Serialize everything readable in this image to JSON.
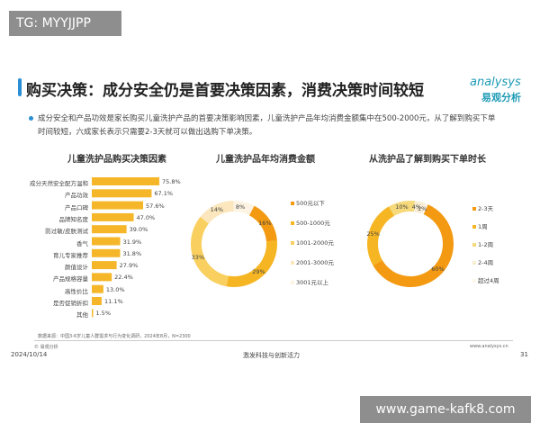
{
  "slide": {
    "title": "购买决策：成分安全仍是首要决策因素，消费决策时间较短",
    "logo_en": "analysys",
    "logo_cn": "易观分析",
    "bullet_line1": "成分安全和产品功效是家长购买儿童洗护产品的首要决策影响因素，儿童洗护产品年均消费金额集中在500-2000元，从了解到购买下单",
    "bullet_line2": "时间较短，六成家长表示只需要2-3天就可以做出选购下单决策。",
    "source": "数据来源：中国3-6岁儿童人群需求与行为变化调研，2024年8月，N=2300",
    "copyright": "© 易观分析",
    "website": "www.analysys.cn",
    "date": "2024/10/14",
    "footer_center": "激发科技与创新活力",
    "page_number": "31"
  },
  "watermarks": {
    "top_left": "TG: MYYJJPP",
    "bottom_right": "www.game-kafk8.com"
  },
  "colors": {
    "accent": "#2b8fd6",
    "bar": "#f5b729",
    "logo": "#1f9bb5"
  },
  "chart_data": [
    {
      "type": "bar",
      "orientation": "horizontal",
      "title": "儿童洗护品购买决策因素",
      "categories": [
        "成分天然安全配方温和",
        "产品功效",
        "产品口碑",
        "品牌知名度",
        "防过敏/皮肤测试",
        "香气",
        "育儿专家推荐",
        "颜值设计",
        "产品规格容量",
        "高性价比",
        "是否促销折扣",
        "其他"
      ],
      "values": [
        75.8,
        67.1,
        57.6,
        47.0,
        39.0,
        31.9,
        31.8,
        27.9,
        22.4,
        13.0,
        11.1,
        1.5
      ],
      "labels": [
        "75.8%",
        "67.1%",
        "57.6%",
        "47.0%",
        "39.0%",
        "31.9%",
        "31.8%",
        "27.9%",
        "22.4%",
        "13.0%",
        "11.1%",
        "1.5%"
      ],
      "unit": "%"
    },
    {
      "type": "pie",
      "donut": true,
      "title": "儿童洗护品年均消费金额",
      "categories": [
        "500元以下",
        "500-1000元",
        "1001-2000元",
        "2001-3000元",
        "3001元以上"
      ],
      "values": [
        16,
        29,
        33,
        14,
        8
      ],
      "labels": [
        "16%",
        "29%",
        "33%",
        "14%",
        "8%"
      ],
      "colors": [
        "#f39a12",
        "#f6b623",
        "#f9cf5f",
        "#fbe6bd",
        "#fdf3e2"
      ],
      "legend": "right"
    },
    {
      "type": "pie",
      "donut": true,
      "title": "从洗护品了解到购买下单时长",
      "categories": [
        "2-3天",
        "1周",
        "1-2周",
        "2-4周",
        "超过4周"
      ],
      "values": [
        60,
        25,
        10,
        4,
        1
      ],
      "labels": [
        "60%",
        "25%",
        "10%",
        "4%",
        "1%"
      ],
      "colors": [
        "#f39a12",
        "#f6b623",
        "#f6d97a",
        "#f8ecd2",
        "#fdf6ea"
      ],
      "legend": "right"
    }
  ]
}
